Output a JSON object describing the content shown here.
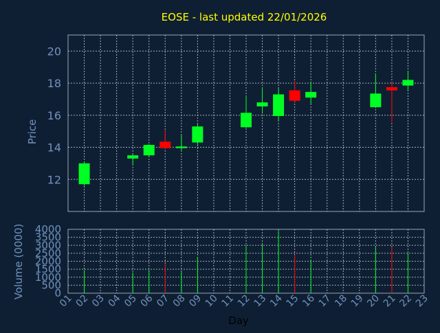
{
  "colors": {
    "background": "#0f1f33",
    "panel": "#0f1f33",
    "frame": "#9aa6b2",
    "grid": "#c8d0d8",
    "title": "#ffff00",
    "axis_text": "#6f93c0",
    "xlabel": "#000000",
    "up": "#00ff22",
    "down": "#ff0000"
  },
  "chart_data": {
    "type": "candlestick",
    "title": "EOSE - last updated 22/01/2026",
    "xlabel": "Day",
    "price_ylabel": "Price",
    "volume_ylabel": "Volume (0000)",
    "price_ylim": [
      10,
      21
    ],
    "price_ticks": [
      12,
      14,
      16,
      18,
      20
    ],
    "volume_ylim": [
      0,
      4000
    ],
    "volume_ticks": [
      0,
      500,
      1000,
      1500,
      2000,
      2500,
      3000,
      3500,
      4000
    ],
    "x_ticks": [
      "01",
      "02",
      "03",
      "04",
      "05",
      "06",
      "07",
      "08",
      "09",
      "10",
      "11",
      "12",
      "13",
      "14",
      "15",
      "16",
      "17",
      "18",
      "19",
      "20",
      "21",
      "22",
      "23"
    ],
    "grid": true,
    "candles": [
      {
        "day": 2,
        "open": 11.7,
        "high": 13.1,
        "low": 11.6,
        "close": 13.0,
        "volume": 1450
      },
      {
        "day": 5,
        "open": 13.3,
        "high": 13.55,
        "low": 12.9,
        "close": 13.5,
        "volume": 1300
      },
      {
        "day": 6,
        "open": 13.5,
        "high": 14.2,
        "low": 13.4,
        "close": 14.15,
        "volume": 1450
      },
      {
        "day": 7,
        "open": 14.35,
        "high": 15.1,
        "low": 13.9,
        "close": 13.95,
        "volume": 1850
      },
      {
        "day": 8,
        "open": 13.95,
        "high": 14.75,
        "low": 13.8,
        "close": 14.05,
        "volume": 1350
      },
      {
        "day": 9,
        "open": 14.3,
        "high": 15.45,
        "low": 14.1,
        "close": 15.3,
        "volume": 2250
      },
      {
        "day": 12,
        "open": 15.25,
        "high": 17.2,
        "low": 15.2,
        "close": 16.15,
        "volume": 3000
      },
      {
        "day": 13,
        "open": 16.55,
        "high": 17.75,
        "low": 16.1,
        "close": 16.8,
        "volume": 3050
      },
      {
        "day": 14,
        "open": 15.95,
        "high": 17.7,
        "low": 15.6,
        "close": 17.3,
        "volume": 3900
      },
      {
        "day": 15,
        "open": 17.55,
        "high": 18.15,
        "low": 16.85,
        "close": 16.9,
        "volume": 2400
      },
      {
        "day": 16,
        "open": 17.1,
        "high": 18.1,
        "low": 16.7,
        "close": 17.45,
        "volume": 2100
      },
      {
        "day": 20,
        "open": 16.5,
        "high": 18.6,
        "low": 16.45,
        "close": 17.35,
        "volume": 2900
      },
      {
        "day": 21,
        "open": 17.75,
        "high": 18.05,
        "low": 15.55,
        "close": 17.55,
        "volume": 2900
      },
      {
        "day": 22,
        "open": 17.85,
        "high": 18.75,
        "low": 17.5,
        "close": 18.2,
        "volume": 2500
      }
    ]
  }
}
